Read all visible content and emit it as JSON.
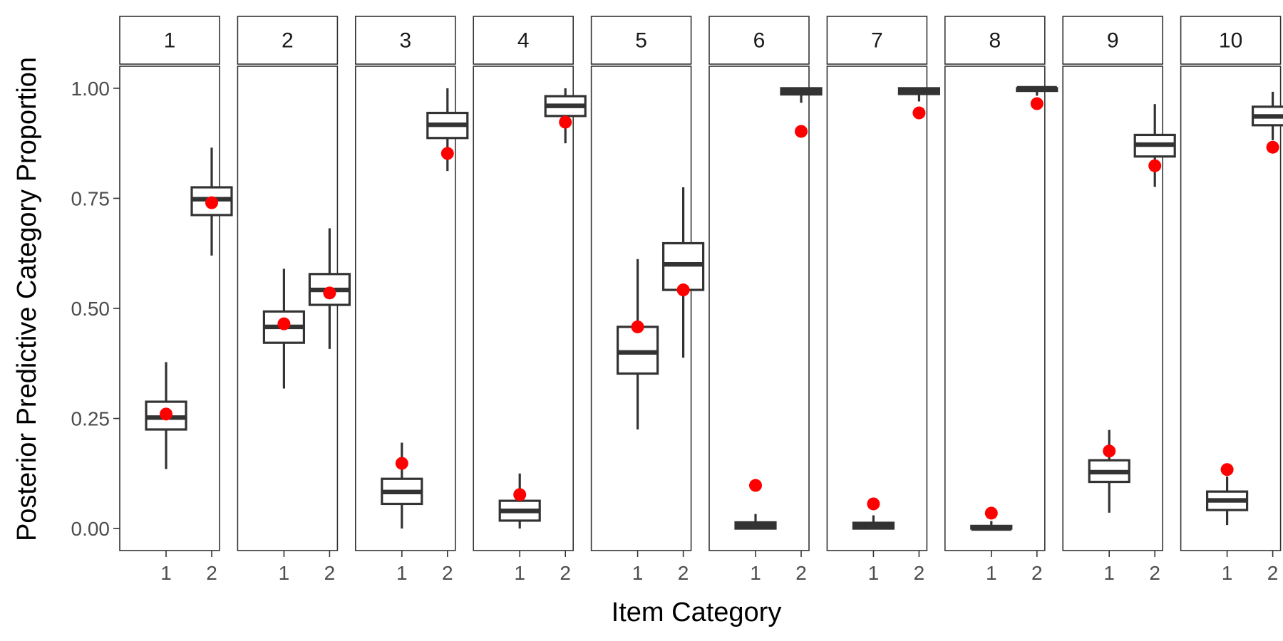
{
  "chart_data": {
    "type": "box",
    "xlabel": "Item Category",
    "ylabel": "Posterior Predictive Category Proportion",
    "ylim": [
      -0.05,
      1.05
    ],
    "y_ticks": [
      0.0,
      0.25,
      0.5,
      0.75,
      1.0
    ],
    "y_tick_labels": [
      "0.00",
      "0.25",
      "0.50",
      "0.75",
      "1.00"
    ],
    "categories": [
      "1",
      "2"
    ],
    "legend": "none",
    "grid": false,
    "box_color": "#333333",
    "point_color": "#ff0000",
    "panels": [
      {
        "label": "1",
        "boxes": [
          {
            "category": "1",
            "min": 0.135,
            "q1": 0.225,
            "median": 0.252,
            "q3": 0.288,
            "max": 0.378,
            "observed": 0.26
          },
          {
            "category": "2",
            "min": 0.62,
            "q1": 0.712,
            "median": 0.748,
            "q3": 0.775,
            "max": 0.865,
            "observed": 0.74
          }
        ]
      },
      {
        "label": "2",
        "boxes": [
          {
            "category": "1",
            "min": 0.318,
            "q1": 0.422,
            "median": 0.458,
            "q3": 0.493,
            "max": 0.59,
            "observed": 0.465
          },
          {
            "category": "2",
            "min": 0.408,
            "q1": 0.508,
            "median": 0.542,
            "q3": 0.578,
            "max": 0.682,
            "observed": 0.535
          }
        ]
      },
      {
        "label": "3",
        "boxes": [
          {
            "category": "1",
            "min": 0.0,
            "q1": 0.056,
            "median": 0.083,
            "q3": 0.113,
            "max": 0.195,
            "observed": 0.148
          },
          {
            "category": "2",
            "min": 0.812,
            "q1": 0.887,
            "median": 0.917,
            "q3": 0.944,
            "max": 1.0,
            "observed": 0.852
          }
        ]
      },
      {
        "label": "4",
        "boxes": [
          {
            "category": "1",
            "min": 0.0,
            "q1": 0.018,
            "median": 0.04,
            "q3": 0.063,
            "max": 0.125,
            "observed": 0.077
          },
          {
            "category": "2",
            "min": 0.875,
            "q1": 0.937,
            "median": 0.96,
            "q3": 0.982,
            "max": 1.0,
            "observed": 0.923
          }
        ]
      },
      {
        "label": "5",
        "boxes": [
          {
            "category": "1",
            "min": 0.225,
            "q1": 0.352,
            "median": 0.4,
            "q3": 0.458,
            "max": 0.612,
            "observed": 0.458
          },
          {
            "category": "2",
            "min": 0.388,
            "q1": 0.542,
            "median": 0.6,
            "q3": 0.648,
            "max": 0.775,
            "observed": 0.542
          }
        ]
      },
      {
        "label": "6",
        "boxes": [
          {
            "category": "1",
            "min": 0.0,
            "q1": 0.0,
            "median": 0.007,
            "q3": 0.014,
            "max": 0.033,
            "observed": 0.098
          },
          {
            "category": "2",
            "min": 0.967,
            "q1": 0.986,
            "median": 0.993,
            "q3": 1.0,
            "max": 1.0,
            "observed": 0.902
          }
        ]
      },
      {
        "label": "7",
        "boxes": [
          {
            "category": "1",
            "min": 0.0,
            "q1": 0.0,
            "median": 0.006,
            "q3": 0.013,
            "max": 0.03,
            "observed": 0.056
          },
          {
            "category": "2",
            "min": 0.97,
            "q1": 0.987,
            "median": 0.994,
            "q3": 1.0,
            "max": 1.0,
            "observed": 0.944
          }
        ]
      },
      {
        "label": "8",
        "boxes": [
          {
            "category": "1",
            "min": 0.0,
            "q1": 0.0,
            "median": 0.0,
            "q3": 0.006,
            "max": 0.017,
            "observed": 0.035
          },
          {
            "category": "2",
            "min": 0.983,
            "q1": 0.994,
            "median": 1.0,
            "q3": 1.0,
            "max": 1.0,
            "observed": 0.965
          }
        ]
      },
      {
        "label": "9",
        "boxes": [
          {
            "category": "1",
            "min": 0.036,
            "q1": 0.106,
            "median": 0.128,
            "q3": 0.155,
            "max": 0.224,
            "observed": 0.176
          },
          {
            "category": "2",
            "min": 0.776,
            "q1": 0.845,
            "median": 0.872,
            "q3": 0.894,
            "max": 0.964,
            "observed": 0.824
          }
        ]
      },
      {
        "label": "10",
        "boxes": [
          {
            "category": "1",
            "min": 0.008,
            "q1": 0.042,
            "median": 0.064,
            "q3": 0.084,
            "max": 0.118,
            "observed": 0.134
          },
          {
            "category": "2",
            "min": 0.882,
            "q1": 0.916,
            "median": 0.936,
            "q3": 0.958,
            "max": 0.992,
            "observed": 0.866
          }
        ]
      }
    ]
  }
}
